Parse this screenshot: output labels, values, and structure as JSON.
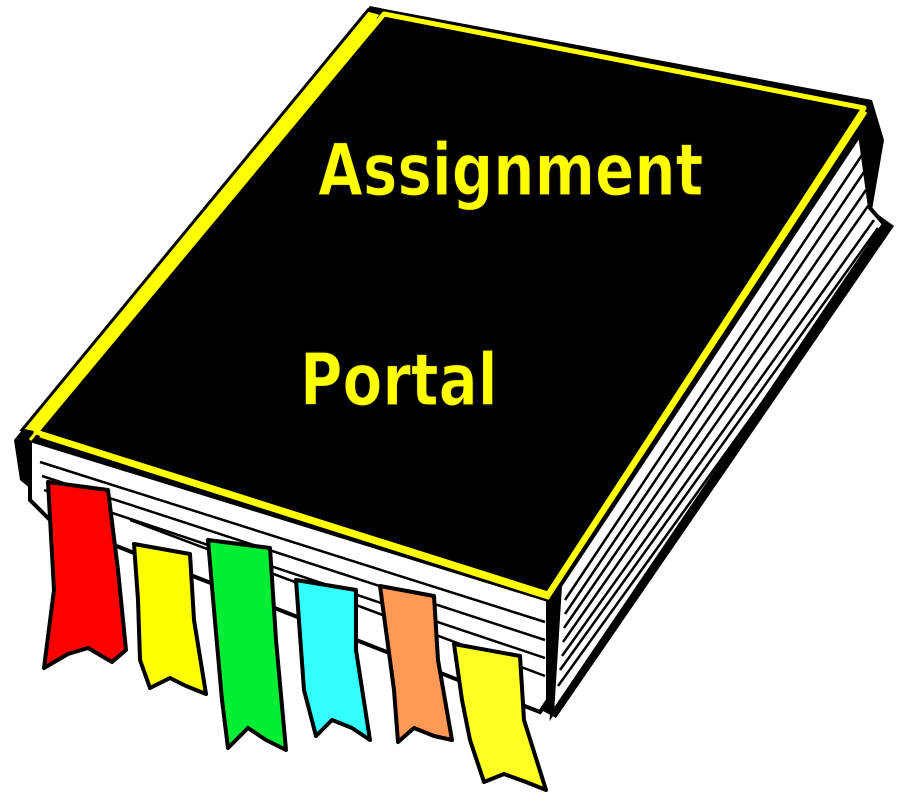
{
  "book": {
    "title_line1": "Assignment",
    "title_line2": "Portal",
    "cover_color": "#000000",
    "trim_color": "#ffff00",
    "title_color": "#ffff00"
  },
  "bookmarks": [
    {
      "name": "bookmark-red",
      "color": "#ff0000"
    },
    {
      "name": "bookmark-yellow",
      "color": "#ffff00"
    },
    {
      "name": "bookmark-green",
      "color": "#00ee33"
    },
    {
      "name": "bookmark-cyan",
      "color": "#33ffff"
    },
    {
      "name": "bookmark-orange",
      "color": "#ff9955"
    },
    {
      "name": "bookmark-yellow-2",
      "color": "#ffff22"
    }
  ]
}
